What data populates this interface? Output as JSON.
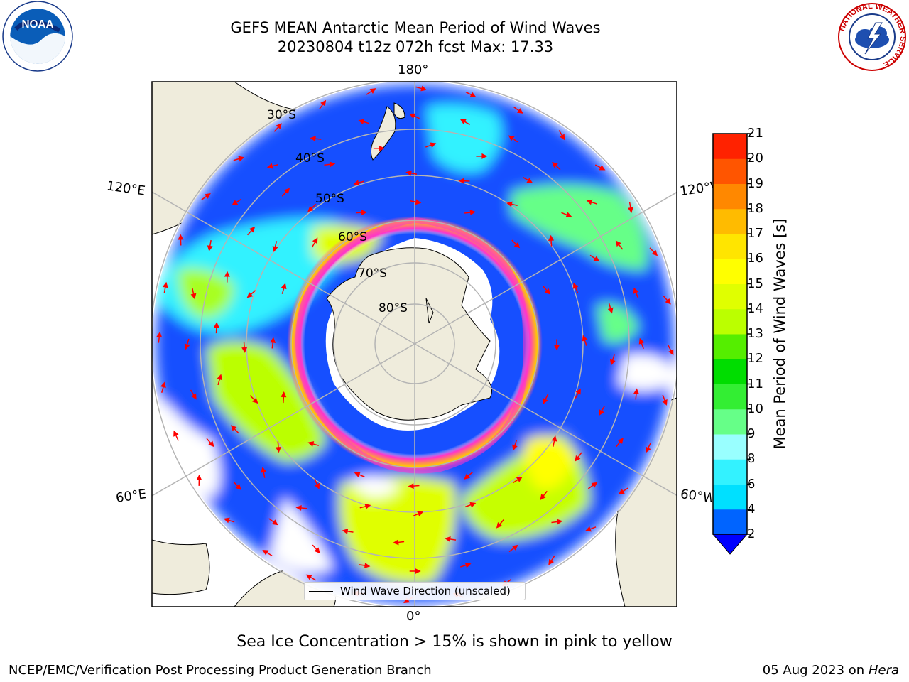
{
  "header": {
    "title_line1": "GEFS MEAN Antarctic Mean Period of Wind Waves",
    "title_line2": "20230804 t12z 072h fcst   Max: 17.33"
  },
  "logos": {
    "left": "noaa-logo",
    "right": "nws-logo",
    "noaa_text": "NOAA",
    "nws_arc_text": "NATIONAL WEATHER SERVICE"
  },
  "map": {
    "projection": "south-polar-stereographic",
    "lon_labels": {
      "top": "180°",
      "bottom": "0°",
      "upper_left": "120°E",
      "lower_left": "60°E",
      "upper_right": "120°W",
      "lower_right": "60°W"
    },
    "lat_labels": [
      "30°S",
      "40°S",
      "50°S",
      "60°S",
      "70°S",
      "80°S"
    ],
    "land_color": "#efecdc",
    "arrow_color": "#ff0000",
    "ice_colors": [
      "#ff33cc",
      "#ffcc00"
    ]
  },
  "colorbar": {
    "label": "Mean Period of Wind Waves [s]",
    "ticks": [
      "2",
      "4",
      "6",
      "8",
      "9",
      "10",
      "11",
      "12",
      "13",
      "14",
      "15",
      "16",
      "17",
      "18",
      "19",
      "20",
      "21"
    ],
    "colors": [
      "#0064ff",
      "#00e0ff",
      "#33f2ff",
      "#99ffff",
      "#66ff88",
      "#33ee33",
      "#00dd00",
      "#55ee00",
      "#bbff00",
      "#e0ff00",
      "#ffff00",
      "#ffe500",
      "#ffbb00",
      "#ff8800",
      "#ff5500",
      "#ff2200"
    ],
    "under_color": "#0000ff",
    "extend": "min"
  },
  "legend": {
    "label": "Wind Wave Direction (unscaled)"
  },
  "footer": {
    "caption": "Sea Ice Concentration > 15% is shown in pink to yellow",
    "credit": "NCEP/EMC/Verification Post Processing Product Generation Branch",
    "date": "05 Aug 2023 on",
    "machine": "Hera"
  }
}
